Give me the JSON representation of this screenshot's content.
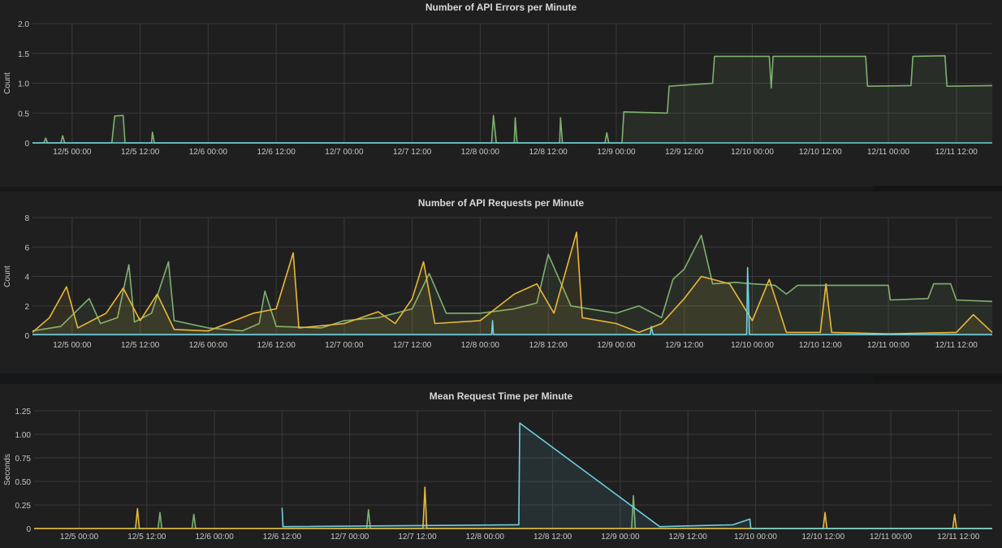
{
  "colors": {
    "green": "#7eb26d",
    "yellow": "#eab839",
    "cyan": "#6ed0e0"
  },
  "chart_data": [
    {
      "type": "line",
      "title": "Number of API Errors per Minute",
      "ylabel": "Count",
      "xlabel": "",
      "xlim": [
        "12/4 17:00",
        "12/11 18:20"
      ],
      "ylim": [
        0,
        2
      ],
      "yticks": [
        "0",
        "0.5",
        "1.0",
        "1.5",
        "2.0"
      ],
      "ytick_values": [
        0,
        0.5,
        1,
        1.5,
        2
      ],
      "xticks": [
        "12/5 00:00",
        "12/5 12:00",
        "12/6 00:00",
        "12/6 12:00",
        "12/7 00:00",
        "12/7 12:00",
        "12/8 00:00",
        "12/8 12:00",
        "12/9 00:00",
        "12/9 12:00",
        "12/10 00:00",
        "12/10 12:00",
        "12/11 00:00",
        "12/11 12:00"
      ],
      "grid": true,
      "fill": true,
      "series": [
        {
          "color": "green",
          "points": [
            [
              "12/4 17:00",
              0
            ],
            [
              "12/4 19:00",
              0
            ],
            [
              "12/4 19:20",
              0.08
            ],
            [
              "12/4 19:40",
              0
            ],
            [
              "12/4 22:00",
              0
            ],
            [
              "12/4 22:20",
              0.12
            ],
            [
              "12/4 22:40",
              0
            ],
            [
              "12/5 07:00",
              0
            ],
            [
              "12/5 07:30",
              0.45
            ],
            [
              "12/5 09:00",
              0.46
            ],
            [
              "12/5 09:20",
              0
            ],
            [
              "12/5 14:00",
              0
            ],
            [
              "12/5 14:10",
              0.18
            ],
            [
              "12/5 14:30",
              0
            ],
            [
              "12/8 02:00",
              0
            ],
            [
              "12/8 02:20",
              0.46
            ],
            [
              "12/8 02:50",
              0
            ],
            [
              "12/8 06:00",
              0
            ],
            [
              "12/8 06:10",
              0.42
            ],
            [
              "12/8 06:30",
              0
            ],
            [
              "12/8 14:00",
              0
            ],
            [
              "12/8 14:10",
              0.42
            ],
            [
              "12/8 14:30",
              0
            ],
            [
              "12/8 22:00",
              0
            ],
            [
              "12/8 22:20",
              0.17
            ],
            [
              "12/8 22:40",
              0
            ],
            [
              "12/9 01:00",
              0
            ],
            [
              "12/9 01:20",
              0.52
            ],
            [
              "12/9 09:00",
              0.5
            ],
            [
              "12/9 09:20",
              0.95
            ],
            [
              "12/9 17:00",
              1.0
            ],
            [
              "12/9 17:20",
              1.45
            ],
            [
              "12/10 03:00",
              1.45
            ],
            [
              "12/10 03:20",
              0.92
            ],
            [
              "12/10 03:40",
              1.45
            ],
            [
              "12/10 20:00",
              1.45
            ],
            [
              "12/10 20:20",
              0.95
            ],
            [
              "12/11 04:00",
              0.96
            ],
            [
              "12/11 04:20",
              1.45
            ],
            [
              "12/11 10:00",
              1.46
            ],
            [
              "12/11 10:20",
              0.95
            ],
            [
              "12/11 18:20",
              0.96
            ]
          ]
        },
        {
          "color": "cyan",
          "points": [
            [
              "12/4 17:00",
              0
            ],
            [
              "12/11 18:20",
              0
            ]
          ]
        }
      ]
    },
    {
      "type": "line",
      "title": "Number of API Requests per Minute",
      "ylabel": "Count",
      "xlabel": "",
      "xlim": [
        "12/4 17:00",
        "12/11 18:20"
      ],
      "ylim": [
        0,
        8
      ],
      "yticks": [
        "0",
        "2",
        "4",
        "6",
        "8"
      ],
      "ytick_values": [
        0,
        2,
        4,
        6,
        8
      ],
      "xticks": [
        "12/5 00:00",
        "12/5 12:00",
        "12/6 00:00",
        "12/6 12:00",
        "12/7 00:00",
        "12/7 12:00",
        "12/8 00:00",
        "12/8 12:00",
        "12/9 00:00",
        "12/9 12:00",
        "12/10 00:00",
        "12/10 12:00",
        "12/11 00:00",
        "12/11 12:00"
      ],
      "grid": true,
      "fill": true,
      "series": [
        {
          "color": "green",
          "points": [
            [
              "12/4 17:00",
              0.3
            ],
            [
              "12/4 22:00",
              0.6
            ],
            [
              "12/5 03:00",
              2.5
            ],
            [
              "12/5 05:00",
              0.8
            ],
            [
              "12/5 08:00",
              1.2
            ],
            [
              "12/5 10:00",
              4.8
            ],
            [
              "12/5 11:00",
              0.9
            ],
            [
              "12/5 14:00",
              1.5
            ],
            [
              "12/5 17:00",
              5.0
            ],
            [
              "12/5 18:00",
              1.0
            ],
            [
              "12/6 00:00",
              0.5
            ],
            [
              "12/6 06:00",
              0.3
            ],
            [
              "12/6 09:00",
              0.8
            ],
            [
              "12/6 10:00",
              3.0
            ],
            [
              "12/6 12:00",
              0.6
            ],
            [
              "12/6 20:00",
              0.5
            ],
            [
              "12/7 00:00",
              1.0
            ],
            [
              "12/7 06:00",
              1.2
            ],
            [
              "12/7 12:00",
              1.8
            ],
            [
              "12/7 15:00",
              4.2
            ],
            [
              "12/7 18:00",
              1.5
            ],
            [
              "12/8 00:00",
              1.5
            ],
            [
              "12/8 06:00",
              1.8
            ],
            [
              "12/8 10:00",
              2.2
            ],
            [
              "12/8 12:00",
              5.5
            ],
            [
              "12/8 16:00",
              2.0
            ],
            [
              "12/9 00:00",
              1.5
            ],
            [
              "12/9 04:00",
              2.0
            ],
            [
              "12/9 08:00",
              1.2
            ],
            [
              "12/9 10:00",
              3.8
            ],
            [
              "12/9 12:00",
              4.5
            ],
            [
              "12/9 15:00",
              6.8
            ],
            [
              "12/9 17:00",
              3.5
            ],
            [
              "12/9 21:00",
              3.6
            ],
            [
              "12/10 00:00",
              3.5
            ],
            [
              "12/10 04:00",
              3.4
            ],
            [
              "12/10 06:00",
              2.8
            ],
            [
              "12/10 08:00",
              3.4
            ],
            [
              "12/10 16:00",
              3.4
            ],
            [
              "12/11 00:00",
              3.4
            ],
            [
              "12/11 00:20",
              2.4
            ],
            [
              "12/11 07:00",
              2.5
            ],
            [
              "12/11 08:00",
              3.5
            ],
            [
              "12/11 11:00",
              3.5
            ],
            [
              "12/11 12:00",
              2.4
            ],
            [
              "12/11 18:20",
              2.3
            ]
          ]
        },
        {
          "color": "yellow",
          "points": [
            [
              "12/4 17:00",
              0.2
            ],
            [
              "12/4 20:00",
              1.2
            ],
            [
              "12/4 23:00",
              3.3
            ],
            [
              "12/5 01:00",
              0.5
            ],
            [
              "12/5 06:00",
              1.5
            ],
            [
              "12/5 09:00",
              3.2
            ],
            [
              "12/5 12:00",
              1.0
            ],
            [
              "12/5 15:00",
              2.8
            ],
            [
              "12/5 18:00",
              0.4
            ],
            [
              "12/6 00:00",
              0.3
            ],
            [
              "12/6 08:00",
              1.5
            ],
            [
              "12/6 12:00",
              1.8
            ],
            [
              "12/6 15:00",
              5.6
            ],
            [
              "12/6 16:00",
              0.5
            ],
            [
              "12/7 00:00",
              0.8
            ],
            [
              "12/7 06:00",
              1.6
            ],
            [
              "12/7 09:00",
              0.8
            ],
            [
              "12/7 12:00",
              2.5
            ],
            [
              "12/7 14:00",
              5.0
            ],
            [
              "12/7 16:00",
              0.8
            ],
            [
              "12/8 00:00",
              1.0
            ],
            [
              "12/8 06:00",
              2.8
            ],
            [
              "12/8 10:00",
              3.5
            ],
            [
              "12/8 13:00",
              1.5
            ],
            [
              "12/8 17:00",
              7.0
            ],
            [
              "12/8 18:00",
              1.2
            ],
            [
              "12/9 00:00",
              0.8
            ],
            [
              "12/9 04:00",
              0.2
            ],
            [
              "12/9 08:00",
              0.8
            ],
            [
              "12/9 12:00",
              2.5
            ],
            [
              "12/9 15:00",
              4.0
            ],
            [
              "12/9 20:00",
              3.5
            ],
            [
              "12/10 00:00",
              1.0
            ],
            [
              "12/10 03:00",
              3.8
            ],
            [
              "12/10 06:00",
              0.2
            ],
            [
              "12/10 12:00",
              0.2
            ],
            [
              "12/10 13:00",
              3.5
            ],
            [
              "12/10 14:00",
              0.2
            ],
            [
              "12/11 00:00",
              0.1
            ],
            [
              "12/11 12:00",
              0.2
            ],
            [
              "12/11 15:00",
              1.4
            ],
            [
              "12/11 18:20",
              0.2
            ]
          ]
        },
        {
          "color": "cyan",
          "points": [
            [
              "12/4 17:00",
              0.05
            ],
            [
              "12/8 02:00",
              0.05
            ],
            [
              "12/8 02:10",
              1.0
            ],
            [
              "12/8 02:20",
              0.05
            ],
            [
              "12/9 06:00",
              0.05
            ],
            [
              "12/9 06:10",
              0.6
            ],
            [
              "12/9 06:30",
              0.05
            ],
            [
              "12/9 23:00",
              0.05
            ],
            [
              "12/9 23:10",
              4.6
            ],
            [
              "12/9 23:30",
              0.05
            ],
            [
              "12/11 18:20",
              0.05
            ]
          ]
        }
      ]
    },
    {
      "type": "line",
      "title": "Mean Request Time per Minute",
      "ylabel": "Seconds",
      "xlabel": "",
      "xlim": [
        "12/4 16:00",
        "12/11 18:00"
      ],
      "ylim": [
        0,
        1.25
      ],
      "yticks": [
        "0",
        "0.25",
        "0.50",
        "0.75",
        "1.00",
        "1.25"
      ],
      "ytick_values": [
        0,
        0.25,
        0.5,
        0.75,
        1,
        1.25
      ],
      "xticks": [
        "12/5 00:00",
        "12/5 12:00",
        "12/6 00:00",
        "12/6 12:00",
        "12/7 00:00",
        "12/7 12:00",
        "12/8 00:00",
        "12/8 12:00",
        "12/9 00:00",
        "12/9 12:00",
        "12/10 00:00",
        "12/10 12:00",
        "12/11 00:00",
        "12/11 12:00"
      ],
      "grid": true,
      "fill": true,
      "series": [
        {
          "color": "green",
          "points": [
            [
              "12/4 16:00",
              0
            ],
            [
              "12/5 14:00",
              0
            ],
            [
              "12/5 14:20",
              0.17
            ],
            [
              "12/5 14:40",
              0
            ],
            [
              "12/5 20:00",
              0
            ],
            [
              "12/5 20:20",
              0.15
            ],
            [
              "12/5 20:40",
              0
            ],
            [
              "12/7 03:00",
              0
            ],
            [
              "12/7 03:20",
              0.2
            ],
            [
              "12/7 03:40",
              0
            ],
            [
              "12/9 02:00",
              0
            ],
            [
              "12/9 02:20",
              0.35
            ],
            [
              "12/9 02:40",
              0
            ],
            [
              "12/11 18:00",
              0
            ]
          ]
        },
        {
          "color": "yellow",
          "points": [
            [
              "12/4 16:00",
              0
            ],
            [
              "12/5 10:00",
              0
            ],
            [
              "12/5 10:20",
              0.21
            ],
            [
              "12/5 10:40",
              0
            ],
            [
              "12/7 13:00",
              0
            ],
            [
              "12/7 13:20",
              0.44
            ],
            [
              "12/7 13:40",
              0
            ],
            [
              "12/10 12:00",
              0
            ],
            [
              "12/10 12:20",
              0.17
            ],
            [
              "12/10 12:40",
              0
            ],
            [
              "12/11 11:00",
              0
            ],
            [
              "12/11 11:20",
              0.15
            ],
            [
              "12/11 11:40",
              0
            ],
            [
              "12/11 18:00",
              0
            ]
          ]
        },
        {
          "color": "cyan",
          "points": [
            [
              "12/6 12:00",
              0.22
            ],
            [
              "12/6 12:10",
              0.02
            ],
            [
              "12/8 06:00",
              0.04
            ],
            [
              "12/8 06:10",
              1.12
            ],
            [
              "12/9 07:00",
              0.02
            ],
            [
              "12/9 20:00",
              0.04
            ],
            [
              "12/9 23:00",
              0.1
            ],
            [
              "12/9 23:10",
              0
            ],
            [
              "12/11 18:00",
              0
            ]
          ]
        }
      ]
    }
  ]
}
